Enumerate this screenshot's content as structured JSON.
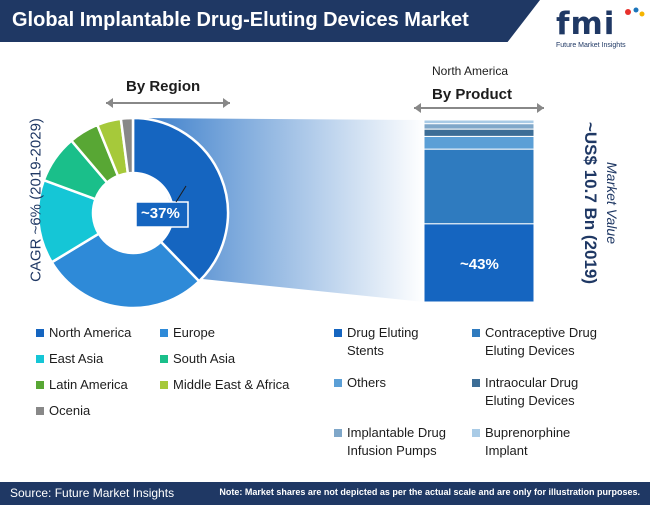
{
  "header": {
    "title": "Global Implantable Drug-Eluting Devices Market",
    "logo_text": "fmi",
    "logo_subtitle": "Future Market Insights",
    "title_bg": "#1f3864"
  },
  "labels": {
    "by_region": "By Region",
    "north_america": "North America",
    "by_product": "By Product",
    "cagr_text": "CAGR ~6% (2019-2029)",
    "market_value_label": "Market Value",
    "market_value": "~US$ 10.7 Bn (2019)"
  },
  "chart_data": [
    {
      "type": "pie",
      "title": "By Region",
      "categories": [
        "North America",
        "Europe",
        "East Asia",
        "South Asia",
        "Latin America",
        "Middle East & Africa",
        "Ocenia"
      ],
      "values": [
        37,
        28,
        14,
        8,
        5,
        4,
        2
      ],
      "colors": [
        "#1565c0",
        "#2e8ad8",
        "#15c6d6",
        "#1abf8a",
        "#58a734",
        "#a6c93a",
        "#888888"
      ],
      "data_labels": [
        {
          "category": "North America",
          "text": "~37%"
        }
      ],
      "legend": "bottom"
    },
    {
      "type": "bar",
      "title": "By Product",
      "subtitle": "North America",
      "stacked": true,
      "categories": [
        "North America"
      ],
      "series": [
        {
          "name": "Drug Eluting Stents",
          "values": [
            43
          ],
          "color": "#1565c0"
        },
        {
          "name": "Contraceptive Drug Eluting Devices",
          "values": [
            41
          ],
          "color": "#2f7bbf"
        },
        {
          "name": "Others",
          "values": [
            7
          ],
          "color": "#5b9fd6"
        },
        {
          "name": "Intraocular Drug Eluting Devices",
          "values": [
            4
          ],
          "color": "#3c6d96"
        },
        {
          "name": "Implantable Drug Infusion Pumps",
          "values": [
            3
          ],
          "color": "#7fa7c9"
        },
        {
          "name": "Buprenorphine Implant",
          "values": [
            2
          ],
          "color": "#a9cbe6"
        }
      ],
      "data_labels": [
        {
          "series": "Drug Eluting Stents",
          "text": "~43%"
        }
      ],
      "legend": "bottom"
    }
  ],
  "footer": {
    "source": "Source: Future Market Insights",
    "note": "Note: Market shares are not depicted as per the actual scale and are only for illustration purposes."
  }
}
